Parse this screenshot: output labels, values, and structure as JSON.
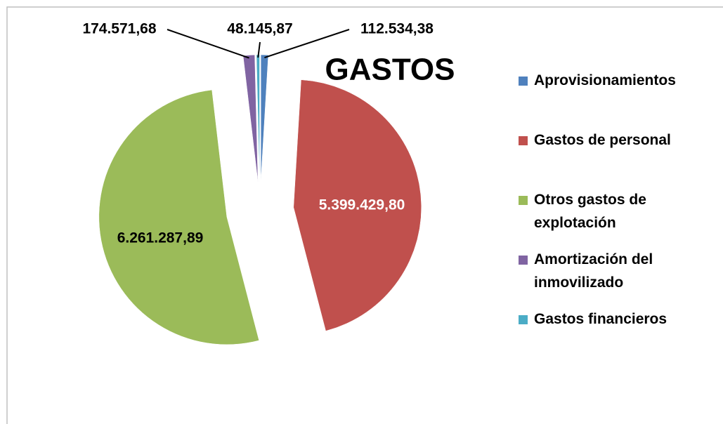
{
  "chart_data": {
    "type": "pie",
    "title": "GASTOS",
    "categories": [
      "Aprovisionamientos",
      "Gastos de personal",
      "Otros gastos de explotación",
      "Amortización del inmovilizado",
      "Gastos financieros"
    ],
    "values": [
      112534.38,
      5399429.8,
      6261287.89,
      174571.68,
      48145.87
    ],
    "value_labels": [
      "112.534,38",
      "5.399.429,80",
      "6.261.287,89",
      "174.571,68",
      "48.145,87"
    ],
    "colors": [
      "#4f81bd",
      "#c0504d",
      "#9bbb59",
      "#8064a2",
      "#4bacc6"
    ],
    "legend": "right"
  }
}
